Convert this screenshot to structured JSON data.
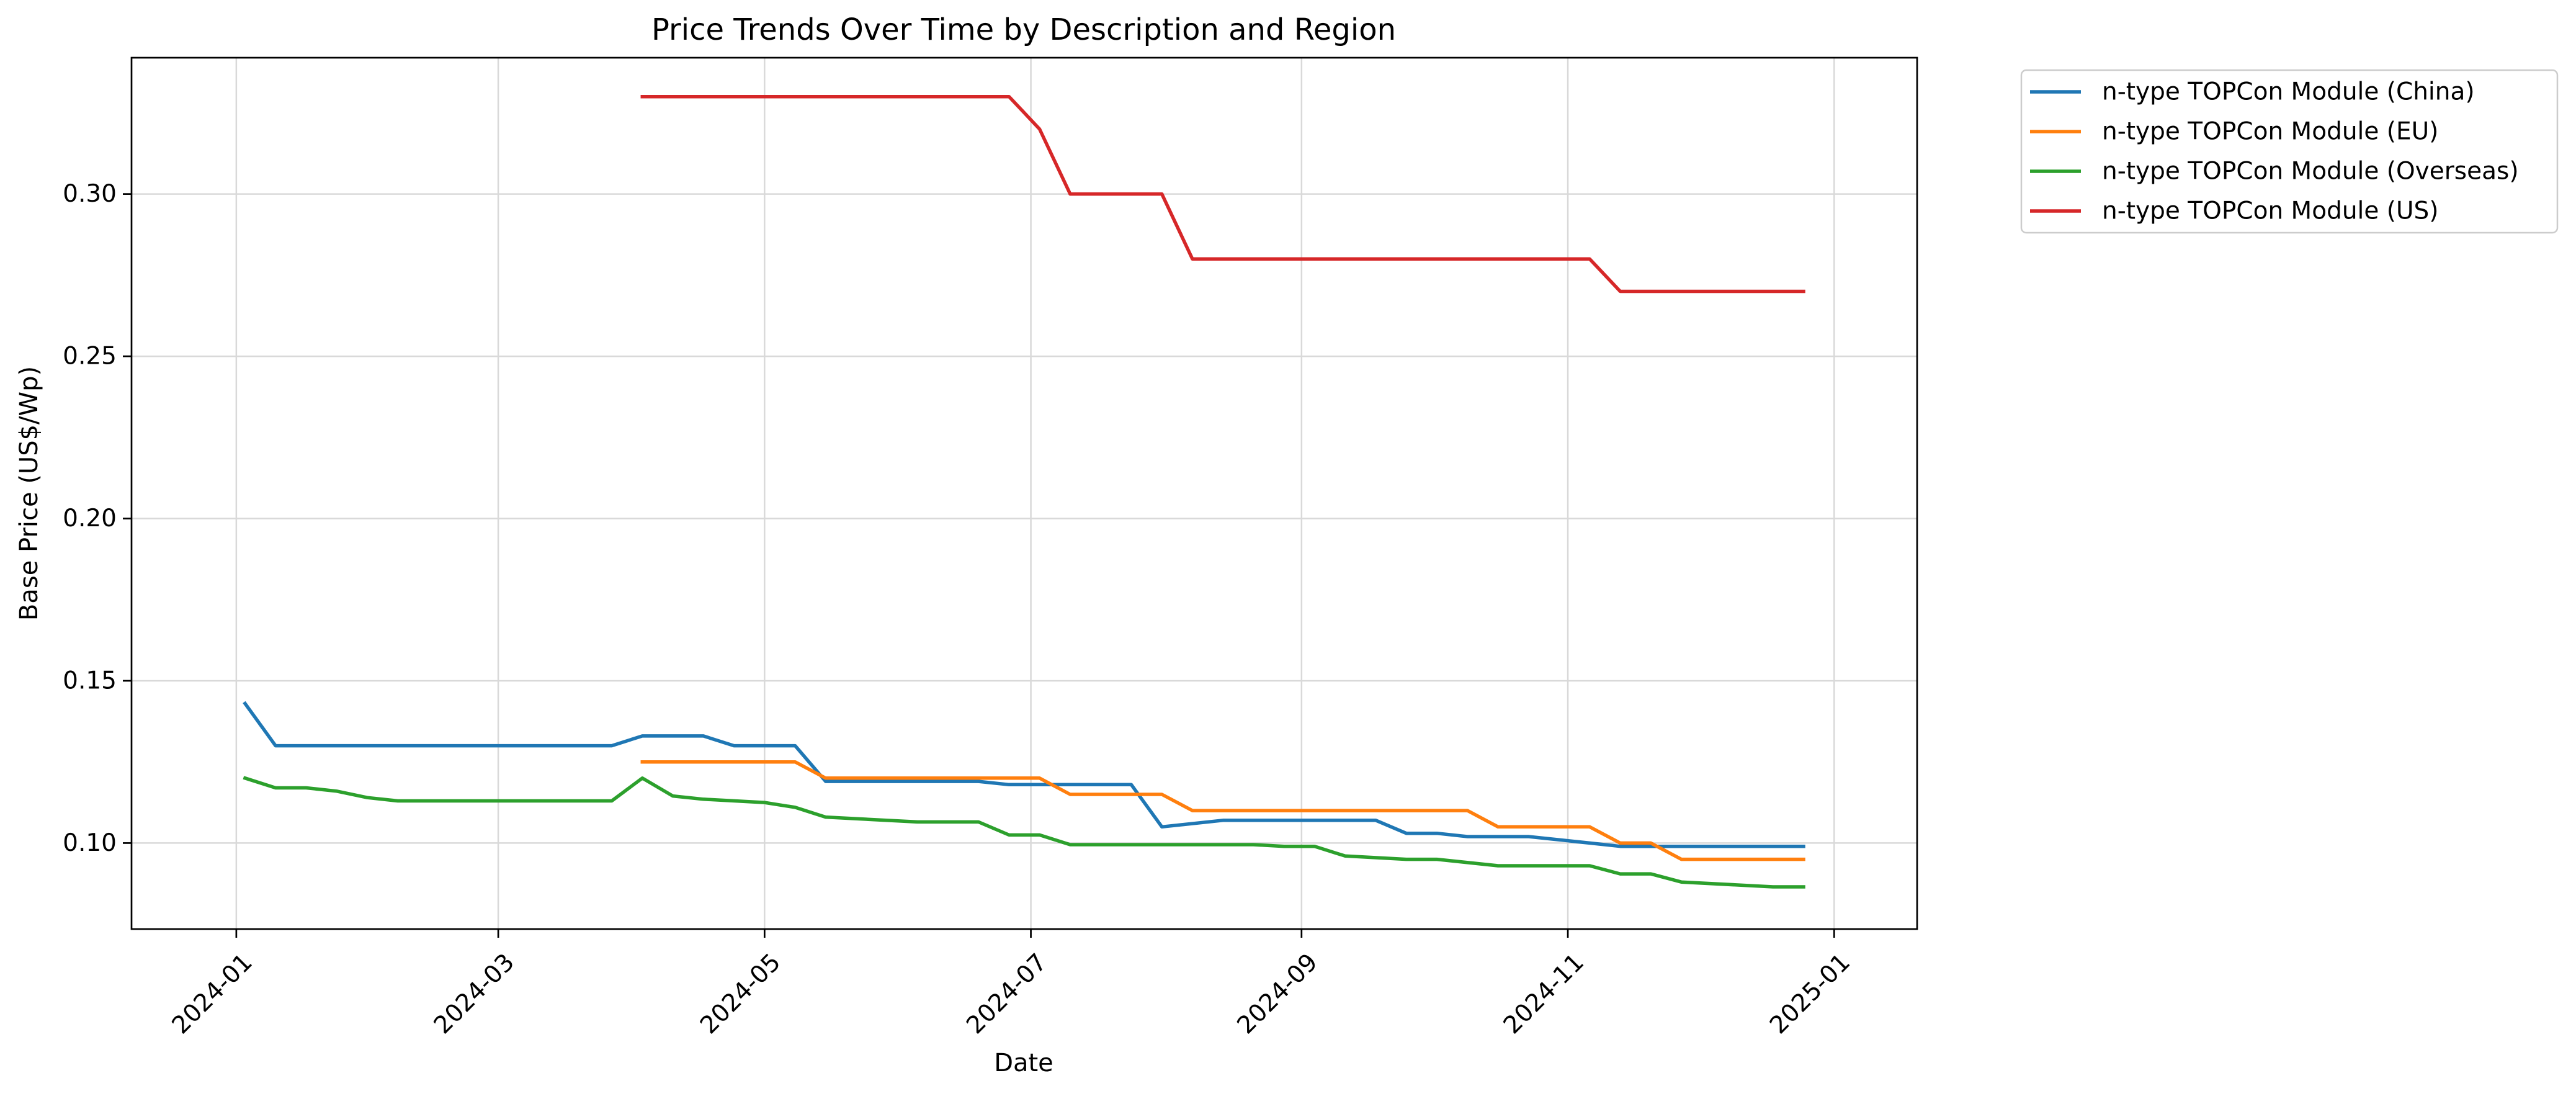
{
  "chart_data": {
    "type": "line",
    "title": "Price Trends Over Time by Description and Region",
    "xlabel": "Date",
    "ylabel": "Base Price (US$/Wp)",
    "xlim": [
      "2023-12-08",
      "2025-01-20"
    ],
    "ylim": [
      0.0735,
      0.342
    ],
    "grid": true,
    "legend_position": "outside-top-right",
    "x_tick_labels": [
      "2024-01",
      "2024-03",
      "2024-05",
      "2024-07",
      "2024-09",
      "2024-11",
      "2025-01"
    ],
    "y_tick_labels": [
      "0.10",
      "0.15",
      "0.20",
      "0.25",
      "0.30"
    ],
    "series": [
      {
        "name": "n-type TOPCon Module (China)",
        "color": "#1f77b4",
        "points": [
          [
            "2024-01-03",
            0.143
          ],
          [
            "2024-01-10",
            0.13
          ],
          [
            "2024-03-27",
            0.13
          ],
          [
            "2024-04-03",
            0.133
          ],
          [
            "2024-04-17",
            0.133
          ],
          [
            "2024-04-24",
            0.13
          ],
          [
            "2024-05-08",
            0.13
          ],
          [
            "2024-05-15",
            0.119
          ],
          [
            "2024-06-19",
            0.119
          ],
          [
            "2024-06-26",
            0.118
          ],
          [
            "2024-07-03",
            0.118
          ],
          [
            "2024-07-24",
            0.118
          ],
          [
            "2024-07-31",
            0.105
          ],
          [
            "2024-08-14",
            0.107
          ],
          [
            "2024-09-18",
            0.107
          ],
          [
            "2024-09-25",
            0.103
          ],
          [
            "2024-10-02",
            0.103
          ],
          [
            "2024-10-09",
            0.102
          ],
          [
            "2024-10-23",
            0.102
          ],
          [
            "2024-11-06",
            0.1
          ],
          [
            "2024-11-13",
            0.099
          ],
          [
            "2024-12-25",
            0.099
          ]
        ]
      },
      {
        "name": "n-type TOPCon Module (EU)",
        "color": "#ff7f0e",
        "points": [
          [
            "2024-04-03",
            0.125
          ],
          [
            "2024-05-08",
            0.125
          ],
          [
            "2024-05-15",
            0.12
          ],
          [
            "2024-07-03",
            0.12
          ],
          [
            "2024-07-10",
            0.115
          ],
          [
            "2024-07-31",
            0.115
          ],
          [
            "2024-08-07",
            0.11
          ],
          [
            "2024-10-09",
            0.11
          ],
          [
            "2024-10-16",
            0.105
          ],
          [
            "2024-11-06",
            0.105
          ],
          [
            "2024-11-13",
            0.1
          ],
          [
            "2024-11-20",
            0.1
          ],
          [
            "2024-11-27",
            0.095
          ],
          [
            "2024-12-25",
            0.095
          ]
        ]
      },
      {
        "name": "n-type TOPCon Module (Overseas)",
        "color": "#2ca02c",
        "points": [
          [
            "2024-01-03",
            0.12
          ],
          [
            "2024-01-10",
            0.117
          ],
          [
            "2024-01-17",
            0.117
          ],
          [
            "2024-01-24",
            0.116
          ],
          [
            "2024-01-31",
            0.114
          ],
          [
            "2024-02-07",
            0.113
          ],
          [
            "2024-03-27",
            0.113
          ],
          [
            "2024-04-03",
            0.12
          ],
          [
            "2024-04-10",
            0.1145
          ],
          [
            "2024-04-17",
            0.1135
          ],
          [
            "2024-05-01",
            0.1125
          ],
          [
            "2024-05-08",
            0.111
          ],
          [
            "2024-05-15",
            0.108
          ],
          [
            "2024-06-05",
            0.1065
          ],
          [
            "2024-06-19",
            0.1065
          ],
          [
            "2024-06-26",
            0.1025
          ],
          [
            "2024-07-03",
            0.1025
          ],
          [
            "2024-07-10",
            0.0995
          ],
          [
            "2024-08-21",
            0.0995
          ],
          [
            "2024-08-28",
            0.099
          ],
          [
            "2024-09-04",
            0.099
          ],
          [
            "2024-09-11",
            0.096
          ],
          [
            "2024-09-25",
            0.095
          ],
          [
            "2024-10-02",
            0.095
          ],
          [
            "2024-10-16",
            0.093
          ],
          [
            "2024-11-06",
            0.093
          ],
          [
            "2024-11-13",
            0.0905
          ],
          [
            "2024-11-20",
            0.0905
          ],
          [
            "2024-11-27",
            0.088
          ],
          [
            "2024-12-18",
            0.0865
          ],
          [
            "2024-12-25",
            0.0865
          ]
        ]
      },
      {
        "name": "n-type TOPCon Module (US)",
        "color": "#d62728",
        "points": [
          [
            "2024-04-03",
            0.33
          ],
          [
            "2024-06-26",
            0.33
          ],
          [
            "2024-07-03",
            0.32
          ],
          [
            "2024-07-10",
            0.3
          ],
          [
            "2024-07-31",
            0.3
          ],
          [
            "2024-08-07",
            0.28
          ],
          [
            "2024-11-06",
            0.28
          ],
          [
            "2024-11-13",
            0.27
          ],
          [
            "2024-12-25",
            0.27
          ]
        ]
      }
    ]
  }
}
